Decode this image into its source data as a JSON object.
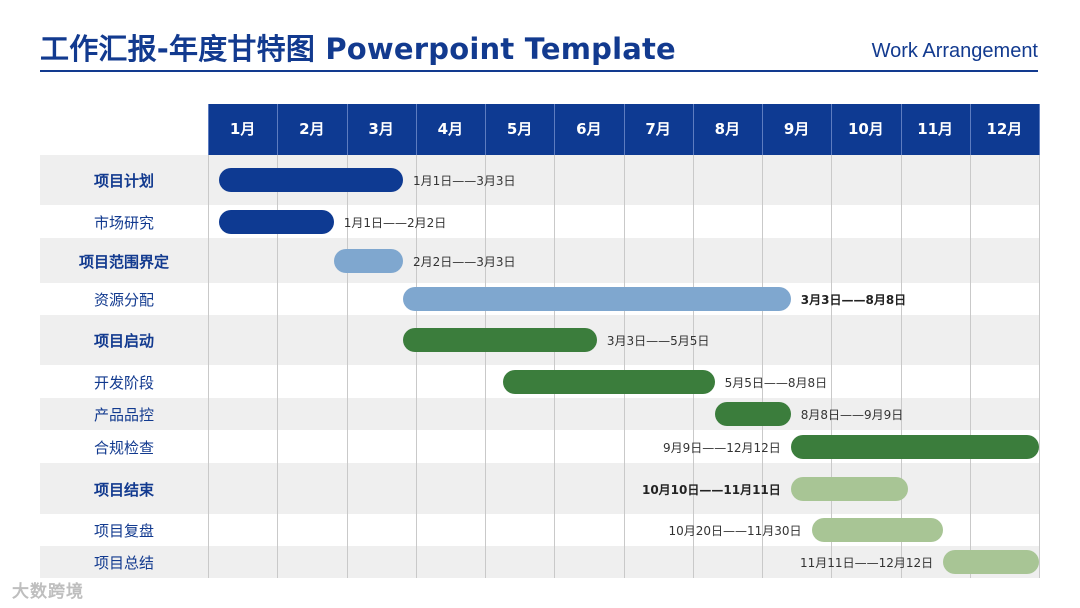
{
  "header": {
    "title": "工作汇报-年度甘特图 Powerpoint Template",
    "subtitle": "Work Arrangement"
  },
  "chart_data": {
    "type": "gantt",
    "months": [
      "1月",
      "2月",
      "3月",
      "4月",
      "5月",
      "6月",
      "7月",
      "8月",
      "9月",
      "10月",
      "11月",
      "12月"
    ],
    "colors": {
      "header": "#0e3a92",
      "title": "#123a8f",
      "dark_blue": "#0e3a92",
      "light_blue": "#7fa7cf",
      "dark_green": "#3b7d3c",
      "light_green": "#a8c595",
      "row_shade": "#efefef"
    },
    "tasks": [
      {
        "name": "项目计划",
        "bold": true,
        "start": 1.05,
        "end": 3.7,
        "color": "dark_blue",
        "label": "1月1日——3月3日",
        "label_side": "right"
      },
      {
        "name": "市场研究",
        "bold": false,
        "start": 1.05,
        "end": 2.7,
        "color": "dark_blue",
        "label": "1月1日——2月2日",
        "label_side": "right"
      },
      {
        "name": "项目范围界定",
        "bold": true,
        "start": 2.7,
        "end": 3.7,
        "color": "light_blue",
        "label": "2月2日——3月3日",
        "label_side": "right"
      },
      {
        "name": "资源分配",
        "bold": false,
        "start": 3.7,
        "end": 9.3,
        "color": "light_blue",
        "label": "3月3日——8月8日",
        "label_side": "right",
        "label_bold": true
      },
      {
        "name": "项目启动",
        "bold": true,
        "start": 3.7,
        "end": 6.5,
        "color": "dark_green",
        "label": "3月3日——5月5日",
        "label_side": "right"
      },
      {
        "name": "开发阶段",
        "bold": false,
        "start": 5.15,
        "end": 8.2,
        "color": "dark_green",
        "label": "5月5日——8月8日",
        "label_side": "right"
      },
      {
        "name": "产品品控",
        "bold": false,
        "start": 8.2,
        "end": 9.3,
        "color": "dark_green",
        "label": "8月8日——9月9日",
        "label_side": "right"
      },
      {
        "name": "合规检查",
        "bold": false,
        "start": 9.3,
        "end": 13.0,
        "color": "dark_green",
        "label": "9月9日——12月12日",
        "label_side": "left"
      },
      {
        "name": "项目结束",
        "bold": true,
        "start": 9.3,
        "end": 11.0,
        "color": "light_green",
        "label": "10月10日——11月11日",
        "label_side": "left",
        "label_bold": true
      },
      {
        "name": "项目复盘",
        "bold": false,
        "start": 9.6,
        "end": 11.5,
        "color": "light_green",
        "label": "10月20日——11月30日",
        "label_side": "left"
      },
      {
        "name": "项目总结",
        "bold": false,
        "start": 11.5,
        "end": 13.0,
        "color": "light_green",
        "label": "11月11日——12月12日",
        "label_side": "left"
      }
    ]
  },
  "watermark": "大数跨境"
}
